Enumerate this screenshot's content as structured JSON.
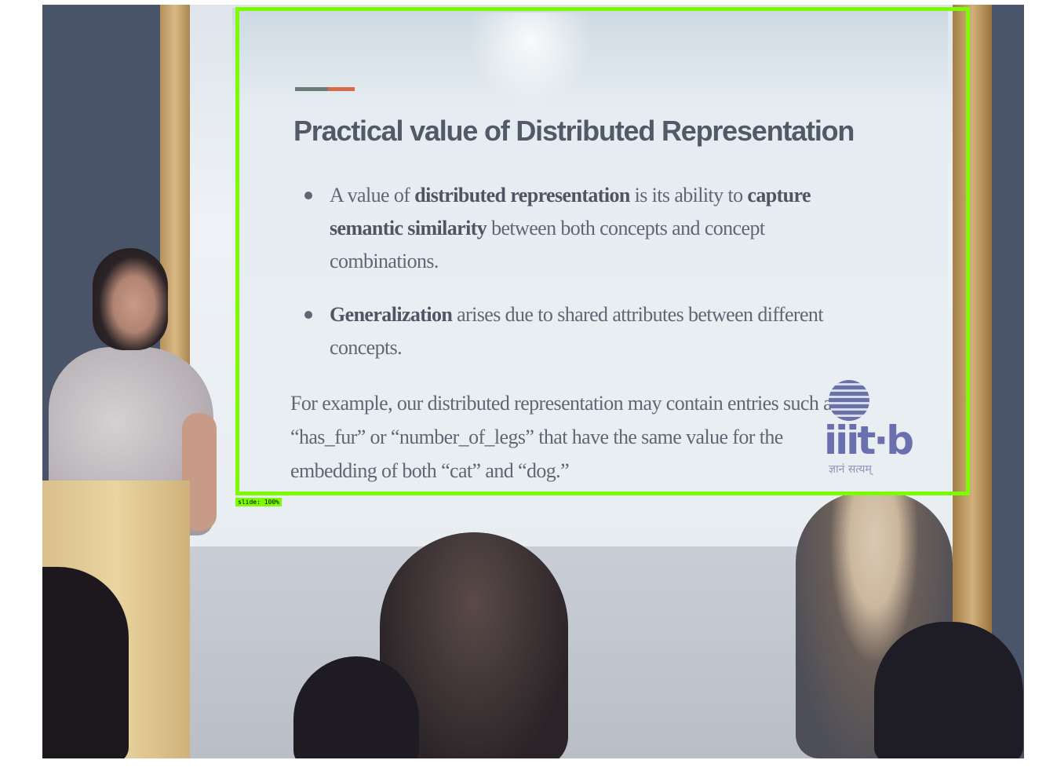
{
  "slide": {
    "title": "Practical value of Distributed Representation",
    "bullet1": {
      "t1": "A value of ",
      "b1": "distributed representation",
      "t2": " is its ability to ",
      "b2": "capture semantic similarity",
      "t3": " between both concepts and concept combinations."
    },
    "bullet2": {
      "b1": "Generalization",
      "t1": " arises due to shared attributes between different concepts."
    },
    "example": "For example, our distributed representation may contain entries such as “has_fur” or “number_of_legs” that have the same value for the embedding of both “cat” and “dog.”",
    "logo": {
      "word": "iiit·b",
      "tagline": "ज्ञानं सत्यम्"
    }
  },
  "annotation": {
    "label": "slide: 100%",
    "color": "#7cfc00"
  }
}
